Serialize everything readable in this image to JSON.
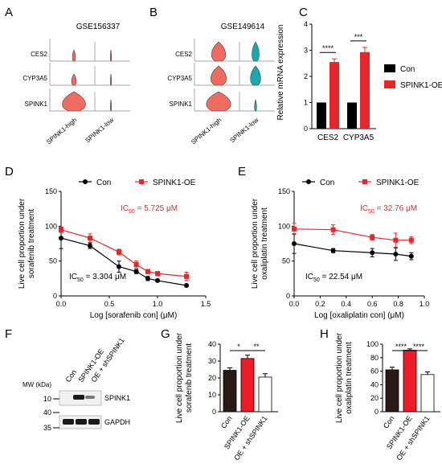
{
  "colors": {
    "con": "#000000",
    "oe": "#e8262a",
    "violin_red": "#f26b62",
    "violin_teal": "#1aa7b0",
    "bar_dark": "#2a1a17",
    "bar_red": "#ee1c25",
    "bar_white": "#ffffff"
  },
  "panel_letters": [
    "A",
    "B",
    "C",
    "D",
    "E",
    "F",
    "G",
    "H"
  ],
  "chart_data": [
    {
      "panel": "A",
      "type": "violin",
      "title": "GSE156337",
      "genes": [
        "CES2",
        "CYP3A5",
        "SPINK1"
      ],
      "groups": [
        "SPINK1-high",
        "SPINK1-low"
      ],
      "relative_width": [
        [
          0.12,
          0.03
        ],
        [
          0.18,
          0.03
        ],
        [
          0.9,
          0.03
        ]
      ]
    },
    {
      "panel": "B",
      "type": "violin",
      "title": "GSE149614",
      "genes": [
        "CES2",
        "CYP3A5",
        "SPINK1"
      ],
      "groups": [
        "SPINK1-high",
        "SPINK1-low"
      ],
      "relative_width": [
        [
          0.55,
          0.28
        ],
        [
          0.6,
          0.4
        ],
        [
          0.95,
          0.08
        ]
      ]
    },
    {
      "panel": "C",
      "type": "bar",
      "ylabel": "Relative mRNA expression",
      "categories": [
        "CES2",
        "CYP3A5"
      ],
      "series": [
        {
          "name": "Con",
          "values": [
            1,
            1
          ],
          "errors": [
            0,
            0
          ]
        },
        {
          "name": "SPINK1-OE",
          "values": [
            2.55,
            2.93
          ],
          "errors": [
            0.12,
            0.18
          ]
        }
      ],
      "ylim": [
        0,
        4
      ],
      "yticks": [
        0,
        1,
        2,
        3,
        4
      ],
      "significance": [
        "****",
        "***"
      ]
    },
    {
      "panel": "D",
      "type": "line",
      "xlabel": "Log [sorafenib con] (μM)",
      "ylabel": [
        "Live cell proportion under",
        "sorafenib treatment"
      ],
      "xlim": [
        0,
        1.5
      ],
      "ylim": [
        0,
        150
      ],
      "xticks": [
        "0.0",
        "0.5",
        "1.0",
        "1.5"
      ],
      "yticks": [
        0,
        50,
        100,
        150
      ],
      "series": [
        {
          "name": "Con",
          "x": [
            0,
            0.3,
            0.6,
            0.78,
            0.9,
            1.0,
            1.3
          ],
          "y": [
            83,
            72,
            42,
            35,
            25,
            22,
            15
          ],
          "errors": [
            15,
            4,
            8,
            3,
            3,
            2,
            2
          ]
        },
        {
          "name": "SPINK1-OE",
          "x": [
            0,
            0.3,
            0.6,
            0.78,
            0.9,
            1.0,
            1.3
          ],
          "y": [
            95,
            83,
            63,
            45,
            35,
            32,
            28
          ],
          "errors": [
            4,
            6,
            4,
            5,
            3,
            3,
            6
          ]
        }
      ],
      "ic50_labels": [
        "IC50 = 3.304 μM",
        "IC50 = 5.725 μM"
      ]
    },
    {
      "panel": "E",
      "type": "line",
      "xlabel": "Log [oxaliplatin con] (μM)",
      "ylabel": [
        "Live cell proportion under",
        "oxaliplatin treatment"
      ],
      "xlim": [
        0,
        1.0
      ],
      "ylim": [
        0,
        150
      ],
      "xticks": [
        "0.0",
        "0.2",
        "0.4",
        "0.6",
        "0.8",
        "1.0"
      ],
      "yticks": [
        0,
        50,
        100,
        150
      ],
      "series": [
        {
          "name": "Con",
          "x": [
            0,
            0.3,
            0.6,
            0.78,
            0.9
          ],
          "y": [
            75,
            65,
            62,
            60,
            57
          ],
          "errors": [
            14,
            3,
            6,
            9,
            5
          ]
        },
        {
          "name": "SPINK1-OE",
          "x": [
            0,
            0.3,
            0.6,
            0.78,
            0.9
          ],
          "y": [
            96,
            95,
            84,
            80,
            80
          ],
          "errors": [
            8,
            7,
            4,
            10,
            5
          ]
        }
      ],
      "ic50_labels": [
        "IC50 = 22.54 μM",
        "IC50 = 32.76 μM"
      ]
    },
    {
      "panel": "G",
      "type": "bar",
      "ylabel": [
        "Live cell proportion under",
        "sorafenib treatment"
      ],
      "categories": [
        "Con",
        "SPINK1-OE",
        "OE + shSPINK1"
      ],
      "values": [
        24.5,
        31.5,
        20.5
      ],
      "errors": [
        1.5,
        2.0,
        2.0
      ],
      "ylim": [
        0,
        40
      ],
      "yticks": [
        0,
        10,
        20,
        30,
        40
      ],
      "significance": [
        "*",
        "**"
      ]
    },
    {
      "panel": "H",
      "type": "bar",
      "ylabel": [
        "Live cell proportion under",
        "oxaliplatin treatment"
      ],
      "categories": [
        "Con",
        "SPINK1-OE",
        "OE + shSPINK1"
      ],
      "values": [
        62,
        91,
        55
      ],
      "errors": [
        4,
        2,
        4
      ],
      "ylim": [
        0,
        100
      ],
      "yticks": [
        0,
        20,
        40,
        60,
        80,
        100
      ],
      "significance": [
        "****",
        "****"
      ]
    }
  ],
  "blot": {
    "mw_label": "MW (kDa)",
    "markers": [
      "10",
      "40",
      "35"
    ],
    "lanes": [
      "Con",
      "SPINK1-OE",
      "OE + shSPINK1"
    ],
    "bands": [
      "SPINK1",
      "GAPDH"
    ]
  }
}
